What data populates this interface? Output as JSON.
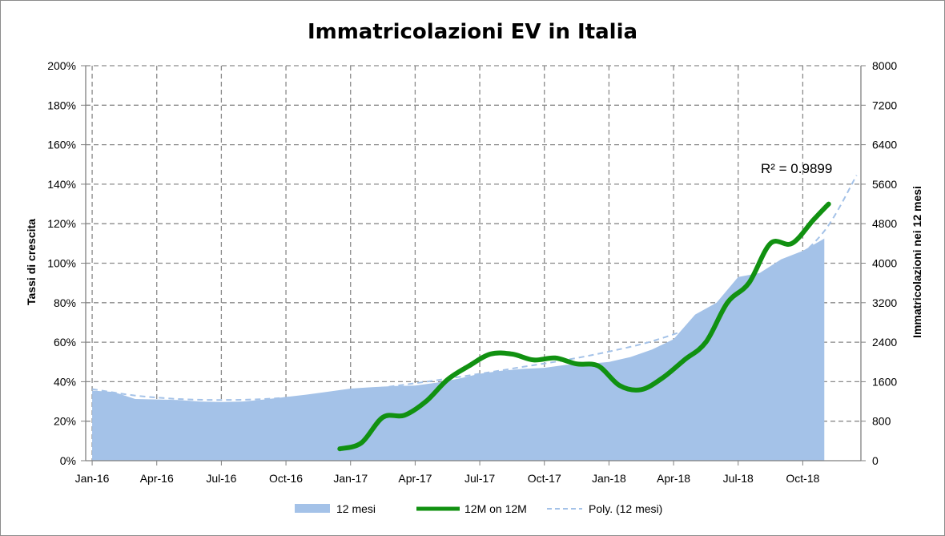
{
  "chart_data": {
    "type": "area+line",
    "title": "Immatricolazioni EV in Italia",
    "ylabel_left": "Tassi di crescita",
    "ylabel_right": "Immatricolazioni nei 12 mesi",
    "y_left_ticks": [
      "0%",
      "20%",
      "40%",
      "60%",
      "80%",
      "100%",
      "120%",
      "140%",
      "160%",
      "180%",
      "200%"
    ],
    "y_left_range": [
      0,
      200
    ],
    "y_right_ticks": [
      "0",
      "800",
      "1600",
      "2400",
      "3200",
      "4000",
      "4800",
      "5600",
      "6400",
      "7200",
      "8000"
    ],
    "y_right_range": [
      0,
      8000
    ],
    "x_tick_labels": [
      "Jan-16",
      "Apr-16",
      "Jul-16",
      "Oct-16",
      "Jan-17",
      "Apr-17",
      "Jul-17",
      "Oct-17",
      "Jan-18",
      "Apr-18",
      "Jul-18",
      "Oct-18"
    ],
    "x_tick_months": [
      0,
      3,
      6,
      9,
      12,
      15,
      18,
      21,
      24,
      27,
      30,
      33
    ],
    "x_range_months": [
      -0.3,
      35.7
    ],
    "grid": true,
    "legend_position": "bottom",
    "series": [
      {
        "name": "12 mesi",
        "type": "area",
        "axis": "right",
        "color": "#a4c2e8",
        "x": [
          0,
          1,
          2,
          3,
          4,
          5,
          6,
          7,
          8,
          9,
          10,
          11,
          12,
          13,
          14,
          15,
          16,
          17,
          18,
          19,
          20,
          21,
          22,
          23,
          24,
          25,
          26,
          27,
          28,
          29,
          30,
          31,
          32,
          33,
          34
        ],
        "values": [
          1420,
          1390,
          1250,
          1240,
          1230,
          1200,
          1190,
          1200,
          1240,
          1290,
          1340,
          1400,
          1460,
          1490,
          1510,
          1520,
          1580,
          1660,
          1760,
          1820,
          1860,
          1880,
          1940,
          1960,
          2000,
          2100,
          2250,
          2460,
          2960,
          3200,
          3720,
          3800,
          4080,
          4250,
          4500
        ]
      },
      {
        "name": "12M on 12M",
        "type": "line",
        "axis": "left",
        "color": "#119111",
        "x": [
          11.5,
          12.5,
          13.5,
          14.5,
          15.5,
          16.5,
          17.5,
          18.5,
          19.5,
          20.5,
          21.5,
          22.5,
          23.5,
          24.5,
          25.5,
          26.5,
          27.5,
          28.5,
          29.5,
          30.5,
          31.5,
          32.5,
          33.5,
          34.2
        ],
        "values": [
          6,
          9,
          22,
          23,
          30,
          41,
          48,
          54,
          54,
          51,
          52,
          49,
          48,
          38,
          36,
          42,
          51,
          60,
          80,
          90,
          110,
          110,
          122,
          130
        ]
      },
      {
        "name": "Poly. (12 mesi)",
        "type": "trendline",
        "axis": "right",
        "color": "#a4c2e8",
        "dash": true,
        "x": [
          0,
          2,
          4,
          6,
          8,
          10,
          12,
          14,
          16,
          18,
          20,
          22,
          24,
          26,
          28,
          30,
          32,
          34,
          35.5
        ],
        "values": [
          1450,
          1320,
          1250,
          1230,
          1250,
          1310,
          1400,
          1510,
          1630,
          1760,
          1900,
          2040,
          2210,
          2420,
          2730,
          3200,
          3830,
          4650,
          5780
        ]
      }
    ],
    "annotations": [
      "R² = 0.9899"
    ]
  },
  "legend": {
    "items": [
      "12 mesi",
      "12M on 12M",
      "Poly. (12 mesi)"
    ]
  }
}
